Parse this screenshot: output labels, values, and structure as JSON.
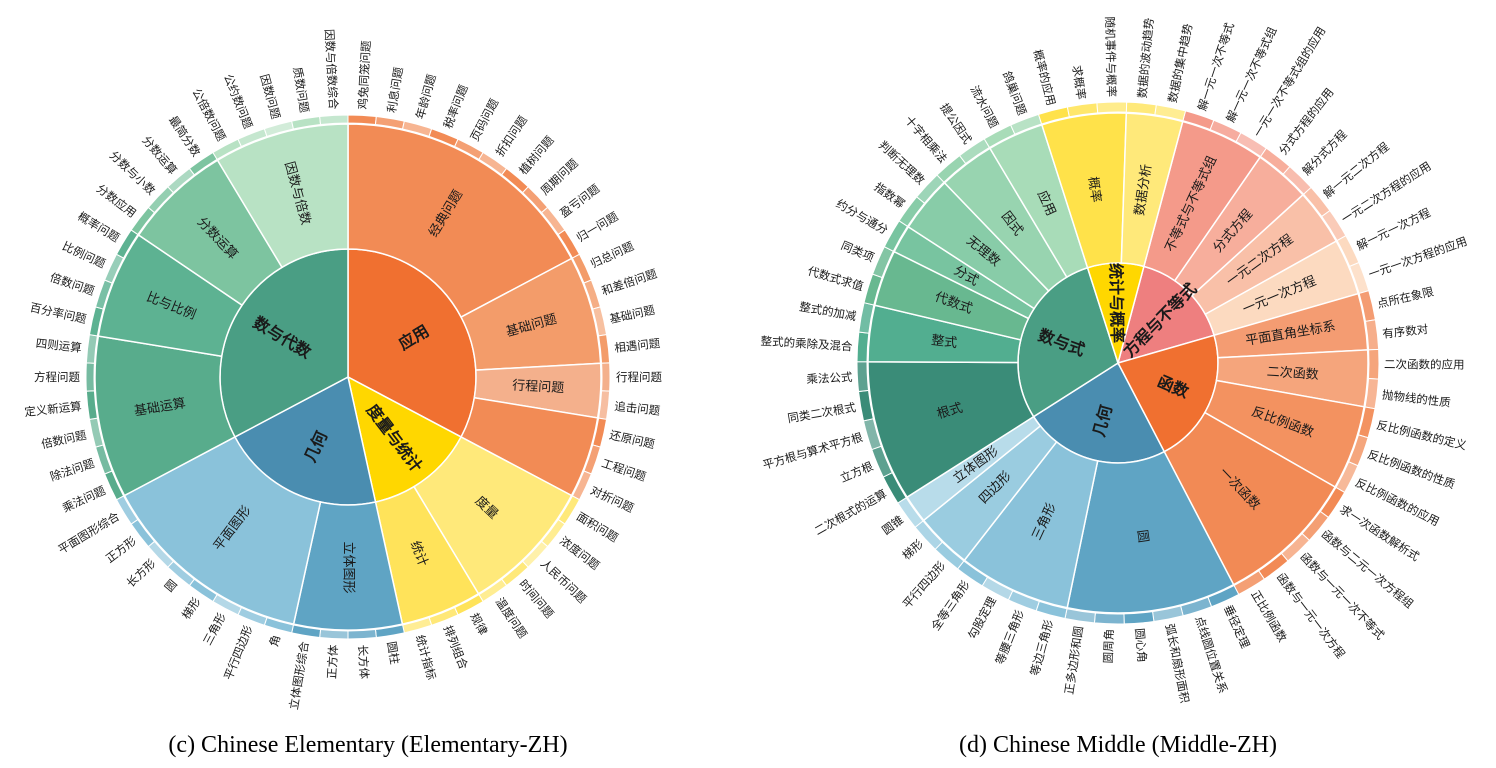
{
  "chart_data": [
    {
      "type": "sunburst",
      "caption": "(c) Chinese Elementary (Elementary-ZH)",
      "nodes": [
        {
          "name": "应用",
          "color": "#F07030",
          "children": [
            {
              "name": "经典问题",
              "color": "#F28B55",
              "children": [
                "鸡兔同笼问题",
                "利息问题",
                "年龄问题",
                "税率问题",
                "页码问题",
                "折扣问题",
                "植树问题",
                "周期问题",
                "盈亏问题",
                "归一问题"
              ]
            },
            {
              "name": "基础问题",
              "color": "#F39C6A",
              "children": [
                "归总问题",
                "和差倍问题",
                "基础问题",
                "相遇问题"
              ]
            },
            {
              "name": "行程问题",
              "color": "#F4B08C",
              "children": [
                "行程问题",
                "追击问题"
              ]
            },
            {
              "name": "",
              "color": "#F28B55",
              "children": [
                "还原问题",
                "工程问题",
                "对折问题"
              ]
            }
          ]
        },
        {
          "name": "度量与统计",
          "color": "#FFD700",
          "children": [
            {
              "name": "度量",
              "color": "#FFE97A",
              "children": [
                "面积问题",
                "浓度问题",
                "人民币问题",
                "时间问题",
                "温度问题"
              ]
            },
            {
              "name": "统计",
              "color": "#FFE35A",
              "children": [
                "规律",
                "排列组合",
                "统计指标"
              ]
            }
          ]
        },
        {
          "name": "几何",
          "color": "#4A8DB0",
          "children": [
            {
              "name": "立体图形",
              "color": "#5FA4C4",
              "children": [
                "圆柱",
                "长方体",
                "正方体",
                "立体图形综合"
              ]
            },
            {
              "name": "平面图形",
              "color": "#8AC2DA",
              "children": [
                "角",
                "平行四边形",
                "三角形",
                "梯形",
                "圆",
                "长方形",
                "正方形",
                "平面图形综合"
              ]
            }
          ]
        },
        {
          "name": "数与代数",
          "color": "#4A9E84",
          "children": [
            {
              "name": "基础运算",
              "color": "#58AC8C",
              "children": [
                "乘法问题",
                "除法问题",
                "倍数问题",
                "定义新运算",
                "方程问题",
                "四则运算"
              ]
            },
            {
              "name": "比与比例",
              "color": "#5DB292",
              "children": [
                "百分率问题",
                "倍数问题",
                "比例问题",
                "概率问题"
              ]
            },
            {
              "name": "分数运算",
              "color": "#7DC4A0",
              "children": [
                "分数应用",
                "分数与小数",
                "分数运算",
                "最简分数"
              ]
            },
            {
              "name": "因数与倍数",
              "color": "#B8E2C4",
              "children": [
                "公倍数问题",
                "公约数问题",
                "因数问题",
                "质数问题",
                "因数与倍数综合"
              ]
            }
          ]
        }
      ]
    },
    {
      "type": "sunburst",
      "caption": "(d) Chinese Middle (Middle-ZH)",
      "nodes": [
        {
          "name": "方程与不等式",
          "color": "#EE7F7F",
          "children": [
            {
              "name": "不等式与不等式组",
              "color": "#F49A8A",
              "children": [
                "解一元一次不等式",
                "解一元一次不等式组",
                "一元一次不等式组的应用"
              ]
            },
            {
              "name": "分式方程",
              "color": "#F7AE9C",
              "children": [
                "分式方程的应用",
                "解分式方程"
              ]
            },
            {
              "name": "一元二次方程",
              "color": "#F9C0A8",
              "children": [
                "解一元二次方程",
                "一元二次方程的应用"
              ]
            },
            {
              "name": "一元一次方程",
              "color": "#FCDAC0",
              "children": [
                "解一元一次方程",
                "一元一次方程的应用"
              ]
            }
          ]
        },
        {
          "name": "函数",
          "color": "#F07030",
          "children": [
            {
              "name": "平面直角坐标系",
              "color": "#F49C72",
              "children": [
                "点所在象限",
                "有序数对"
              ]
            },
            {
              "name": "二次函数",
              "color": "#F5A57C",
              "children": [
                "二次函数的应用",
                "抛物线的性质"
              ]
            },
            {
              "name": "反比例函数",
              "color": "#F39260",
              "children": [
                "反比例函数的定义",
                "反比例函数的性质",
                "反比例函数的应用"
              ]
            },
            {
              "name": "一次函数",
              "color": "#F28A55",
              "children": [
                "求一次函数解析式",
                "函数与二元一次方程组",
                "函数与一元一次不等式",
                "函数与一元一次方程",
                "正比例函数"
              ]
            }
          ]
        },
        {
          "name": "几何",
          "color": "#4A8DB0",
          "children": [
            {
              "name": "圆",
              "color": "#5FA4C4",
              "children": [
                "垂径定理",
                "点线圆位置关系",
                "弧长和扇形面积",
                "圆心角",
                "圆周角",
                "正多边形和圆"
              ]
            },
            {
              "name": "三角形",
              "color": "#8AC2DA",
              "children": [
                "等边三角形",
                "等腰三角形",
                "勾股定理",
                "全等三角形"
              ]
            },
            {
              "name": "四边形",
              "color": "#9ACCE0",
              "children": [
                "平行四边形",
                "梯形"
              ]
            },
            {
              "name": "立体图形",
              "color": "#B8DCEA",
              "children": [
                "圆锥"
              ]
            }
          ]
        },
        {
          "name": "数与式",
          "color": "#4A9E84",
          "children": [
            {
              "name": "根式",
              "color": "#3A8C78",
              "children": [
                "二次根式的运算",
                "立方根",
                "平方根与算术平方根",
                "同类二次根式",
                "乘法公式"
              ]
            },
            {
              "name": "整式",
              "color": "#52AE90",
              "children": [
                "整式的乘除及混合",
                "整式的加减"
              ]
            },
            {
              "name": "代数式",
              "color": "#68B890",
              "children": [
                "代数式求值",
                "同类项"
              ]
            },
            {
              "name": "分式",
              "color": "#78C4A0",
              "children": [
                "约分与通分"
              ]
            },
            {
              "name": "无理数",
              "color": "#88CCA8",
              "children": [
                "指数幂",
                "判断无理数"
              ]
            },
            {
              "name": "因式",
              "color": "#98D4B0",
              "children": [
                "十字相乘法",
                "提公因式"
              ]
            },
            {
              "name": "应用",
              "color": "#A8DCB8",
              "children": [
                "流水问题",
                "鸽巢问题"
              ]
            }
          ]
        },
        {
          "name": "统计与概率",
          "color": "#FFD700",
          "children": [
            {
              "name": "概率",
              "color": "#FFE24A",
              "children": [
                "概率的应用",
                "求概率",
                "随机事件与概率"
              ]
            },
            {
              "name": "数据分析",
              "color": "#FFE97A",
              "children": [
                "数据的波动趋势",
                "数据的集中趋势"
              ]
            }
          ]
        }
      ]
    }
  ]
}
